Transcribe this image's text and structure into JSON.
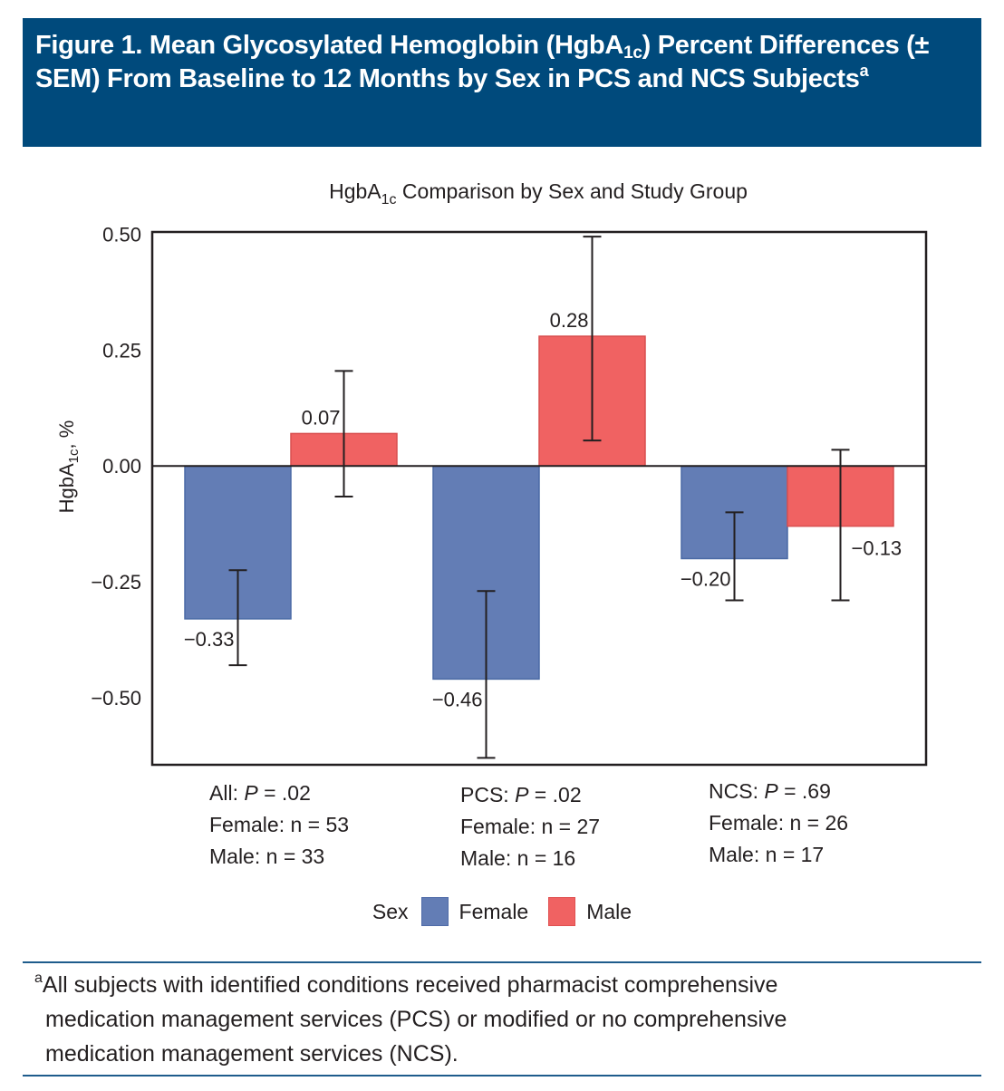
{
  "header": {
    "title_part1": "Figure 1. Mean Glycosylated Hemoglobin (HgbA",
    "title_sub": "1c",
    "title_part2": ") Percent Differences (± SEM) From Baseline to 12 Months by Sex in PCS and NCS Subjects",
    "title_sup": "a",
    "background_color": "#004a7c"
  },
  "chart_data": {
    "type": "bar",
    "title_prefix": "HgbA",
    "title_sub": "1c",
    "title_suffix": " Comparison by Sex and Study Group",
    "title": "HgbA1c Comparison by Sex and Study Group",
    "xlabel": "",
    "ylabel_prefix": "HgbA",
    "ylabel_sub": "1c",
    "ylabel_suffix": ", %",
    "ylabel": "HgbA1c, %",
    "ylim": [
      -0.645,
      0.505
    ],
    "yticks": [
      0.5,
      0.25,
      0.0,
      -0.25,
      -0.5
    ],
    "ytick_labels": [
      "0.50",
      "0.25",
      "0.00",
      "−0.25",
      "−0.50"
    ],
    "grid": false,
    "categories": [
      "All",
      "PCS",
      "NCS"
    ],
    "series": [
      {
        "name": "Female",
        "color": "#637db5",
        "values": [
          -0.33,
          -0.46,
          -0.2
        ],
        "labels": [
          "−0.33",
          "−0.46",
          "−0.20"
        ],
        "error_low": [
          -0.43,
          -0.63,
          -0.29
        ],
        "error_high": [
          -0.225,
          -0.27,
          -0.1
        ]
      },
      {
        "name": "Male",
        "color": "#f06262",
        "values": [
          0.07,
          0.28,
          -0.13
        ],
        "labels": [
          "0.07",
          "0.28",
          "−0.13"
        ],
        "error_low": [
          -0.066,
          0.055,
          -0.29
        ],
        "error_high": [
          0.205,
          0.495,
          0.035
        ]
      }
    ],
    "legend": {
      "placement": "bottom-center",
      "title": "Sex",
      "entries": [
        "Female",
        "Male"
      ]
    },
    "group_notes": [
      {
        "group": "All",
        "p_label": "P",
        "p_value": " = .02",
        "female": "Female: n = 53",
        "male": "Male: n = 33"
      },
      {
        "group": "PCS",
        "p_label": "P",
        "p_value": " = .02",
        "female": "Female: n = 27",
        "male": "Male: n = 16"
      },
      {
        "group": "NCS",
        "p_label": "P",
        "p_value": " = .69",
        "female": "Female: n = 26",
        "male": "Male: n = 17"
      }
    ]
  },
  "footnote": {
    "marker": "a",
    "line1": "All subjects with identified conditions received pharmacist comprehensive",
    "line2": "medication management services (PCS) or modified or no comprehensive",
    "line3": "medication management services (NCS)."
  }
}
